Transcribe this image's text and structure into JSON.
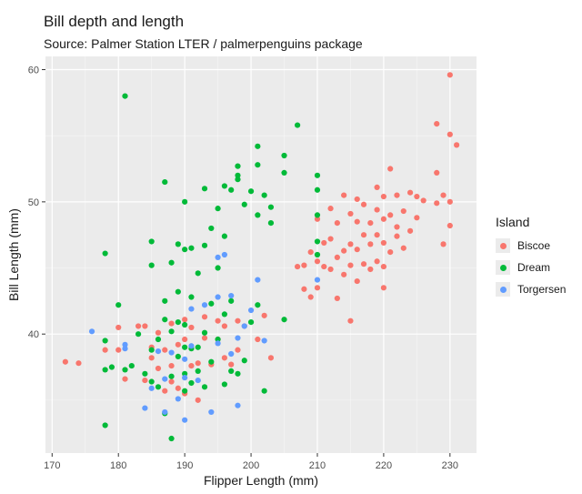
{
  "chart_data": {
    "type": "scatter",
    "title": "Bill depth and length",
    "subtitle": "Source: Palmer Station LTER / palmerpenguins package",
    "xlabel": "Flipper Length (mm)",
    "ylabel": "Bill Length (mm)",
    "xlim": [
      169,
      234
    ],
    "ylim": [
      31,
      61
    ],
    "xticks": [
      170,
      180,
      190,
      200,
      210,
      220,
      230
    ],
    "yticks": [
      40,
      50,
      60
    ],
    "grid": true,
    "legend": {
      "title": "Island",
      "placement": "right"
    },
    "series": [
      {
        "name": "Biscoe",
        "color": "#F8766D",
        "points": [
          [
            172,
            37.9
          ],
          [
            174,
            37.8
          ],
          [
            178,
            38.8
          ],
          [
            180,
            38.8
          ],
          [
            180,
            40.5
          ],
          [
            181,
            36.6
          ],
          [
            183,
            40.6
          ],
          [
            184,
            40.6
          ],
          [
            184,
            36.5
          ],
          [
            185,
            38.2
          ],
          [
            185,
            39.0
          ],
          [
            186,
            40.1
          ],
          [
            186,
            37.4
          ],
          [
            187,
            35.7
          ],
          [
            187,
            38.8
          ],
          [
            188,
            37.6
          ],
          [
            188,
            40.8
          ],
          [
            188,
            36.4
          ],
          [
            189,
            35.9
          ],
          [
            189,
            39.2
          ],
          [
            190,
            35.5
          ],
          [
            190,
            39.6
          ],
          [
            190,
            41.1
          ],
          [
            191,
            37.6
          ],
          [
            191,
            40.5
          ],
          [
            192,
            35.0
          ],
          [
            192,
            37.8
          ],
          [
            193,
            39.7
          ],
          [
            193,
            41.3
          ],
          [
            194,
            37.7
          ],
          [
            195,
            39.6
          ],
          [
            195,
            41.0
          ],
          [
            196,
            38.2
          ],
          [
            196,
            40.6
          ],
          [
            197,
            37.7
          ],
          [
            198,
            38.8
          ],
          [
            198,
            41.0
          ],
          [
            199,
            40.6
          ],
          [
            201,
            39.6
          ],
          [
            202,
            41.4
          ],
          [
            203,
            38.2
          ],
          [
            207,
            45.1
          ],
          [
            208,
            45.2
          ],
          [
            208,
            43.4
          ],
          [
            209,
            42.8
          ],
          [
            209,
            46.2
          ],
          [
            210,
            43.5
          ],
          [
            210,
            45.5
          ],
          [
            210,
            48.7
          ],
          [
            211,
            45.1
          ],
          [
            211,
            46.9
          ],
          [
            212,
            44.9
          ],
          [
            212,
            47.2
          ],
          [
            212,
            49.5
          ],
          [
            213,
            42.7
          ],
          [
            213,
            45.8
          ],
          [
            213,
            48.4
          ],
          [
            214,
            44.5
          ],
          [
            214,
            46.3
          ],
          [
            214,
            50.5
          ],
          [
            215,
            41.0
          ],
          [
            215,
            45.2
          ],
          [
            215,
            46.8
          ],
          [
            215,
            49.1
          ],
          [
            216,
            44.0
          ],
          [
            216,
            46.4
          ],
          [
            216,
            48.5
          ],
          [
            216,
            50.2
          ],
          [
            217,
            45.3
          ],
          [
            217,
            47.5
          ],
          [
            217,
            49.8
          ],
          [
            218,
            44.9
          ],
          [
            218,
            46.8
          ],
          [
            218,
            48.4
          ],
          [
            219,
            45.5
          ],
          [
            219,
            47.5
          ],
          [
            219,
            49.4
          ],
          [
            219,
            51.1
          ],
          [
            220,
            43.5
          ],
          [
            220,
            45.1
          ],
          [
            220,
            46.9
          ],
          [
            220,
            48.7
          ],
          [
            220,
            50.4
          ],
          [
            221,
            46.2
          ],
          [
            221,
            49.0
          ],
          [
            221,
            52.5
          ],
          [
            222,
            47.4
          ],
          [
            222,
            48.1
          ],
          [
            222,
            50.5
          ],
          [
            223,
            46.5
          ],
          [
            223,
            49.3
          ],
          [
            224,
            47.8
          ],
          [
            224,
            50.7
          ],
          [
            225,
            48.8
          ],
          [
            225,
            50.4
          ],
          [
            226,
            50.1
          ],
          [
            228,
            52.2
          ],
          [
            228,
            49.9
          ],
          [
            228,
            55.9
          ],
          [
            229,
            50.5
          ],
          [
            229,
            46.8
          ],
          [
            230,
            59.6
          ],
          [
            230,
            55.1
          ],
          [
            230,
            50.0
          ],
          [
            230,
            48.2
          ],
          [
            231,
            54.3
          ]
        ]
      },
      {
        "name": "Dream",
        "color": "#00BA38",
        "points": [
          [
            178,
            33.1
          ],
          [
            178,
            37.3
          ],
          [
            178,
            39.5
          ],
          [
            178,
            46.1
          ],
          [
            179,
            37.5
          ],
          [
            180,
            42.2
          ],
          [
            181,
            37.3
          ],
          [
            181,
            58.0
          ],
          [
            182,
            37.6
          ],
          [
            183,
            40.0
          ],
          [
            184,
            37.0
          ],
          [
            185,
            36.4
          ],
          [
            185,
            38.8
          ],
          [
            185,
            45.2
          ],
          [
            185,
            47.0
          ],
          [
            186,
            36.0
          ],
          [
            186,
            39.6
          ],
          [
            187,
            34.0
          ],
          [
            187,
            41.1
          ],
          [
            187,
            42.5
          ],
          [
            187,
            51.5
          ],
          [
            188,
            32.1
          ],
          [
            188,
            36.8
          ],
          [
            188,
            40.2
          ],
          [
            188,
            45.4
          ],
          [
            189,
            38.3
          ],
          [
            189,
            40.9
          ],
          [
            189,
            43.2
          ],
          [
            189,
            46.8
          ],
          [
            190,
            35.7
          ],
          [
            190,
            37.0
          ],
          [
            190,
            39.0
          ],
          [
            190,
            40.7
          ],
          [
            190,
            46.4
          ],
          [
            190,
            50.0
          ],
          [
            191,
            36.3
          ],
          [
            191,
            38.9
          ],
          [
            191,
            42.8
          ],
          [
            191,
            46.5
          ],
          [
            192,
            37.2
          ],
          [
            192,
            39.0
          ],
          [
            192,
            44.6
          ],
          [
            193,
            36.0
          ],
          [
            193,
            40.1
          ],
          [
            193,
            46.7
          ],
          [
            193,
            51.0
          ],
          [
            194,
            37.9
          ],
          [
            194,
            42.3
          ],
          [
            194,
            48.0
          ],
          [
            195,
            39.6
          ],
          [
            195,
            45.0
          ],
          [
            195,
            49.5
          ],
          [
            196,
            36.2
          ],
          [
            196,
            41.5
          ],
          [
            196,
            47.4
          ],
          [
            196,
            51.2
          ],
          [
            197,
            37.2
          ],
          [
            197,
            42.5
          ],
          [
            197,
            50.9
          ],
          [
            198,
            37.0
          ],
          [
            198,
            52.0
          ],
          [
            198,
            51.7
          ],
          [
            198,
            52.7
          ],
          [
            199,
            38.0
          ],
          [
            199,
            49.8
          ],
          [
            200,
            40.9
          ],
          [
            200,
            50.8
          ],
          [
            201,
            42.2
          ],
          [
            201,
            49.0
          ],
          [
            201,
            52.8
          ],
          [
            201,
            54.2
          ],
          [
            202,
            35.7
          ],
          [
            202,
            50.5
          ],
          [
            203,
            49.6
          ],
          [
            203,
            48.4
          ],
          [
            205,
            53.5
          ],
          [
            205,
            52.2
          ],
          [
            205,
            41.1
          ],
          [
            207,
            55.8
          ],
          [
            210,
            50.9
          ],
          [
            210,
            52.0
          ],
          [
            210,
            46.0
          ],
          [
            210,
            47.0
          ],
          [
            210,
            49.0
          ]
        ]
      },
      {
        "name": "Torgersen",
        "color": "#619CFF",
        "points": [
          [
            176,
            40.2
          ],
          [
            181,
            38.9
          ],
          [
            181,
            39.2
          ],
          [
            184,
            34.4
          ],
          [
            185,
            35.9
          ],
          [
            186,
            38.7
          ],
          [
            187,
            34.1
          ],
          [
            187,
            36.6
          ],
          [
            188,
            38.6
          ],
          [
            189,
            35.1
          ],
          [
            190,
            33.5
          ],
          [
            190,
            36.7
          ],
          [
            190,
            38.1
          ],
          [
            191,
            39.1
          ],
          [
            191,
            41.9
          ],
          [
            192,
            36.5
          ],
          [
            193,
            42.2
          ],
          [
            194,
            34.1
          ],
          [
            195,
            39.3
          ],
          [
            195,
            42.8
          ],
          [
            195,
            45.8
          ],
          [
            196,
            46.0
          ],
          [
            197,
            42.9
          ],
          [
            197,
            38.5
          ],
          [
            198,
            34.6
          ],
          [
            198,
            39.7
          ],
          [
            199,
            40.6
          ],
          [
            200,
            41.8
          ],
          [
            201,
            44.1
          ],
          [
            202,
            39.5
          ],
          [
            210,
            44.1
          ]
        ]
      }
    ]
  }
}
